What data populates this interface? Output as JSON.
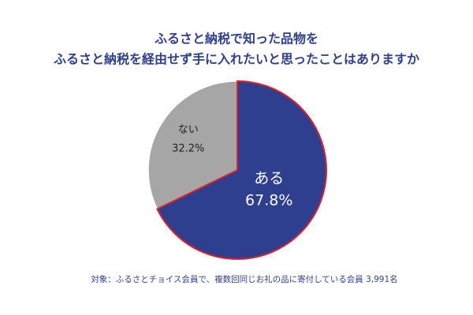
{
  "chart_data": {
    "type": "pie",
    "title": [
      "ふるさと納税で知った品物を",
      "ふるさと納税を経由せず手に入れたいと思ったことはありますか"
    ],
    "categories": [
      "ある",
      "ない"
    ],
    "values": [
      67.8,
      32.2
    ],
    "value_labels": [
      "67.8%",
      "32.2%"
    ],
    "colors": [
      "#2e3f8f",
      "#a6a6a6"
    ],
    "note": "対象：ふるさとチョイス会員で、複数回同じお礼の品に寄付している会員 3,991名"
  }
}
